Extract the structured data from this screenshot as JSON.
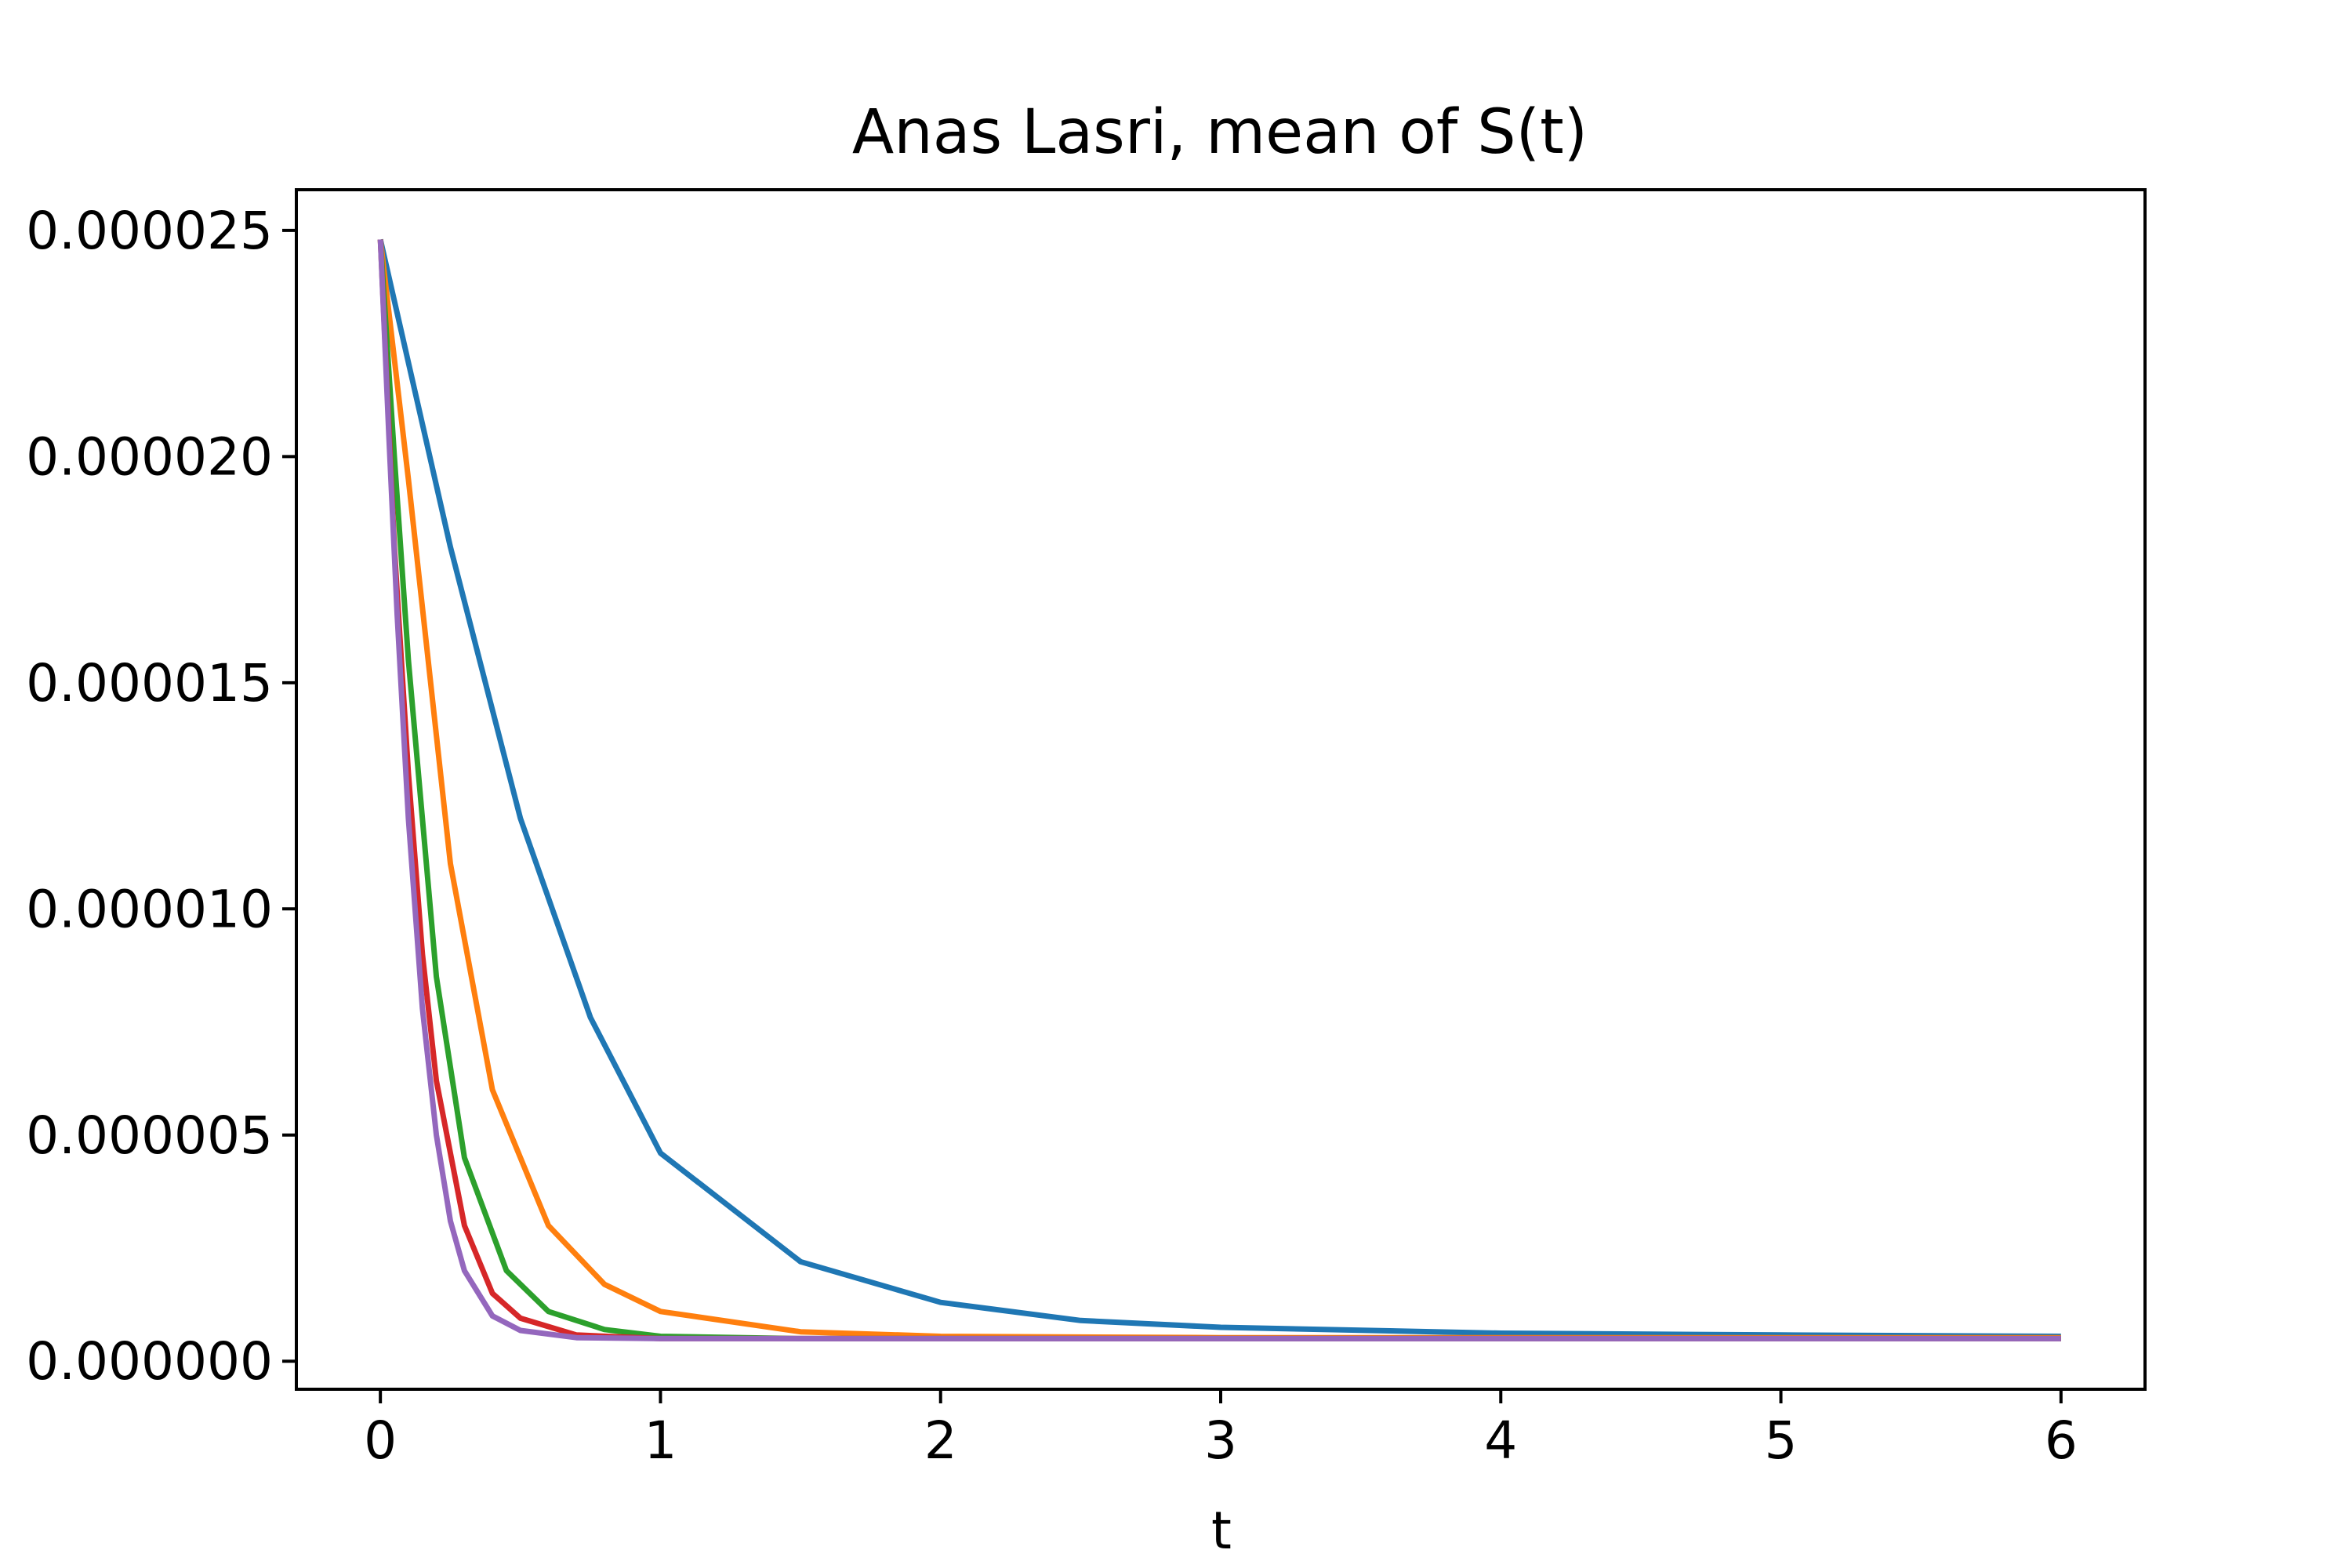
{
  "chart_data": {
    "type": "line",
    "title": "Anas Lasri, mean of S(t)",
    "xlabel": "t",
    "ylabel": "",
    "xlim": [
      -0.3,
      6.3
    ],
    "ylim": [
      -6.2e-07,
      2.59e-05
    ],
    "x_ticks": [
      0,
      1,
      2,
      3,
      4,
      5,
      6
    ],
    "x_tick_labels": [
      "0",
      "1",
      "2",
      "3",
      "4",
      "5",
      "6"
    ],
    "y_ticks": [
      0,
      5e-06,
      1e-05,
      1.5e-05,
      2e-05,
      2.5e-05
    ],
    "y_tick_labels": [
      "0.000000",
      "0.000005",
      "0.000010",
      "0.000015",
      "0.000020",
      "0.000025"
    ],
    "grid": false,
    "legend": "none",
    "series": [
      {
        "color": "#1f77b4",
        "x": [
          0,
          0.25,
          0.5,
          0.75,
          1.0,
          1.5,
          2.0,
          2.5,
          3.0,
          4.0,
          5.0,
          6.0
        ],
        "y": [
          2.48e-05,
          1.8e-05,
          1.2e-05,
          7.6e-06,
          4.6e-06,
          2.2e-06,
          1.3e-06,
          9e-07,
          7.5e-07,
          6.2e-07,
          5.8e-07,
          5.5e-07
        ]
      },
      {
        "color": "#ff7f0e",
        "x": [
          0,
          0.1,
          0.25,
          0.4,
          0.6,
          0.8,
          1.0,
          1.5,
          2.0,
          3.0,
          6.0
        ],
        "y": [
          2.48e-05,
          1.95e-05,
          1.1e-05,
          6e-06,
          3e-06,
          1.7e-06,
          1.1e-06,
          6.5e-07,
          5.5e-07,
          5.2e-07,
          5.2e-07
        ]
      },
      {
        "color": "#2ca02c",
        "x": [
          0,
          0.05,
          0.1,
          0.2,
          0.3,
          0.45,
          0.6,
          0.8,
          1.0,
          1.5,
          6.0
        ],
        "y": [
          2.48e-05,
          2e-05,
          1.55e-05,
          8.5e-06,
          4.5e-06,
          2e-06,
          1.1e-06,
          7e-07,
          5.5e-07,
          5e-07,
          5e-07
        ]
      },
      {
        "color": "#d62728",
        "x": [
          0,
          0.05,
          0.1,
          0.15,
          0.2,
          0.3,
          0.4,
          0.5,
          0.7,
          1.0,
          6.0
        ],
        "y": [
          2.48e-05,
          1.8e-05,
          1.3e-05,
          9e-06,
          6.2e-06,
          3e-06,
          1.5e-06,
          9.5e-07,
          5.8e-07,
          5e-07,
          5e-07
        ]
      },
      {
        "color": "#9467bd",
        "x": [
          0,
          0.03,
          0.06,
          0.1,
          0.15,
          0.2,
          0.25,
          0.3,
          0.4,
          0.5,
          0.7,
          1.0,
          6.0
        ],
        "y": [
          2.48e-05,
          2.05e-05,
          1.65e-05,
          1.2e-05,
          7.8e-06,
          5e-06,
          3.1e-06,
          2e-06,
          1e-06,
          6.8e-07,
          5.2e-07,
          5e-07,
          5e-07
        ]
      }
    ]
  }
}
